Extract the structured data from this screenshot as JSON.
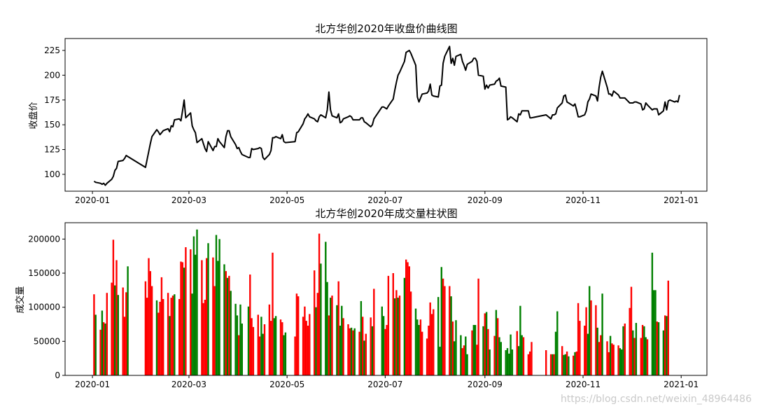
{
  "watermark": "https://blog.csdn.net/weixin_48964486",
  "chart_data": [
    {
      "type": "line",
      "title": "北方华创2020年收盘价曲线图",
      "ylabel": "收盘价",
      "xlabel": "",
      "x_ticks": [
        "2020-01",
        "2020-03",
        "2020-05",
        "2020-07",
        "2020-09",
        "2020-11",
        "2021-01"
      ],
      "y_ticks": [
        100,
        125,
        150,
        175,
        200,
        225
      ],
      "ylim": [
        83,
        237
      ],
      "xlim": [
        "2019-12-15",
        "2021-01-17"
      ],
      "line_color": "#000000",
      "series": [
        {
          "x": [
            "2020-01-02",
            "2020-01-03",
            "2020-01-06",
            "2020-01-07",
            "2020-01-08",
            "2020-01-09",
            "2020-01-10",
            "2020-01-13",
            "2020-01-14",
            "2020-01-15",
            "2020-01-16",
            "2020-01-17",
            "2020-01-20",
            "2020-01-21",
            "2020-01-22",
            "2020-01-23",
            "2020-02-03",
            "2020-02-04",
            "2020-02-05",
            "2020-02-06",
            "2020-02-07",
            "2020-02-10",
            "2020-02-11",
            "2020-02-12",
            "2020-02-13",
            "2020-02-14",
            "2020-02-17",
            "2020-02-18",
            "2020-02-19",
            "2020-02-20",
            "2020-02-21",
            "2020-02-24",
            "2020-02-25",
            "2020-02-26",
            "2020-02-27",
            "2020-02-28",
            "2020-03-02",
            "2020-03-03",
            "2020-03-04",
            "2020-03-05",
            "2020-03-06",
            "2020-03-09",
            "2020-03-10",
            "2020-03-11",
            "2020-03-12",
            "2020-03-13",
            "2020-03-16",
            "2020-03-17",
            "2020-03-18",
            "2020-03-19",
            "2020-03-20",
            "2020-03-23",
            "2020-03-24",
            "2020-03-25",
            "2020-03-26",
            "2020-03-27",
            "2020-03-30",
            "2020-03-31",
            "2020-04-01",
            "2020-04-02",
            "2020-04-03",
            "2020-04-07",
            "2020-04-08",
            "2020-04-09",
            "2020-04-10",
            "2020-04-13",
            "2020-04-14",
            "2020-04-15",
            "2020-04-16",
            "2020-04-17",
            "2020-04-20",
            "2020-04-21",
            "2020-04-22",
            "2020-04-23",
            "2020-04-24",
            "2020-04-27",
            "2020-04-28",
            "2020-04-29",
            "2020-04-30",
            "2020-05-06",
            "2020-05-07",
            "2020-05-08",
            "2020-05-11",
            "2020-05-12",
            "2020-05-13",
            "2020-05-14",
            "2020-05-15",
            "2020-05-18",
            "2020-05-19",
            "2020-05-20",
            "2020-05-21",
            "2020-05-22",
            "2020-05-25",
            "2020-05-26",
            "2020-05-27",
            "2020-05-28",
            "2020-05-29",
            "2020-06-01",
            "2020-06-02",
            "2020-06-03",
            "2020-06-04",
            "2020-06-05",
            "2020-06-08",
            "2020-06-09",
            "2020-06-10",
            "2020-06-11",
            "2020-06-12",
            "2020-06-15",
            "2020-06-16",
            "2020-06-17",
            "2020-06-18",
            "2020-06-19",
            "2020-06-22",
            "2020-06-23",
            "2020-06-24",
            "2020-06-29",
            "2020-06-30",
            "2020-07-01",
            "2020-07-02",
            "2020-07-03",
            "2020-07-06",
            "2020-07-07",
            "2020-07-08",
            "2020-07-09",
            "2020-07-10",
            "2020-07-13",
            "2020-07-14",
            "2020-07-15",
            "2020-07-16",
            "2020-07-17",
            "2020-07-20",
            "2020-07-21",
            "2020-07-22",
            "2020-07-23",
            "2020-07-24",
            "2020-07-27",
            "2020-07-28",
            "2020-07-29",
            "2020-07-30",
            "2020-07-31",
            "2020-08-03",
            "2020-08-04",
            "2020-08-05",
            "2020-08-06",
            "2020-08-07",
            "2020-08-10",
            "2020-08-11",
            "2020-08-12",
            "2020-08-13",
            "2020-08-14",
            "2020-08-17",
            "2020-08-18",
            "2020-08-19",
            "2020-08-20",
            "2020-08-21",
            "2020-08-24",
            "2020-08-25",
            "2020-08-26",
            "2020-08-27",
            "2020-08-28",
            "2020-08-31",
            "2020-09-01",
            "2020-09-02",
            "2020-09-03",
            "2020-09-04",
            "2020-09-07",
            "2020-09-08",
            "2020-09-09",
            "2020-09-10",
            "2020-09-11",
            "2020-09-14",
            "2020-09-15",
            "2020-09-16",
            "2020-09-17",
            "2020-09-18",
            "2020-09-21",
            "2020-09-22",
            "2020-09-23",
            "2020-09-24",
            "2020-09-25",
            "2020-09-28",
            "2020-09-29",
            "2020-09-30",
            "2020-10-09",
            "2020-10-12",
            "2020-10-13",
            "2020-10-14",
            "2020-10-15",
            "2020-10-16",
            "2020-10-19",
            "2020-10-20",
            "2020-10-21",
            "2020-10-22",
            "2020-10-23",
            "2020-10-26",
            "2020-10-27",
            "2020-10-28",
            "2020-10-29",
            "2020-10-30",
            "2020-11-02",
            "2020-11-03",
            "2020-11-04",
            "2020-11-05",
            "2020-11-06",
            "2020-11-09",
            "2020-11-10",
            "2020-11-11",
            "2020-11-12",
            "2020-11-13",
            "2020-11-16",
            "2020-11-17",
            "2020-11-18",
            "2020-11-19",
            "2020-11-20",
            "2020-11-23",
            "2020-11-24",
            "2020-11-25",
            "2020-11-26",
            "2020-11-27",
            "2020-11-30",
            "2020-12-01",
            "2020-12-02",
            "2020-12-03",
            "2020-12-04",
            "2020-12-07",
            "2020-12-08",
            "2020-12-09",
            "2020-12-10",
            "2020-12-11",
            "2020-12-14",
            "2020-12-15",
            "2020-12-16",
            "2020-12-17",
            "2020-12-18",
            "2020-12-21",
            "2020-12-22",
            "2020-12-23",
            "2020-12-24",
            "2020-12-25",
            "2020-12-28",
            "2020-12-29",
            "2020-12-30",
            "2020-12-31"
          ],
          "y": [
            93,
            92,
            91,
            90,
            91,
            89,
            91,
            95,
            98,
            104,
            106,
            113,
            114,
            116,
            119,
            118,
            107,
            115,
            123,
            131,
            138,
            145,
            143,
            140,
            142,
            144,
            146,
            143,
            149,
            148,
            155,
            156,
            154,
            164,
            175,
            157,
            162,
            149,
            145,
            142,
            132,
            136,
            131,
            126,
            123,
            133,
            124,
            128,
            128,
            136,
            133,
            127,
            138,
            144,
            144,
            138,
            130,
            126,
            127,
            123,
            120,
            117,
            117,
            126,
            125,
            126,
            127,
            126,
            117,
            115,
            120,
            124,
            137,
            137,
            138,
            136,
            140,
            133,
            132,
            133,
            142,
            143,
            151,
            156,
            158,
            161,
            158,
            156,
            154,
            153,
            158,
            160,
            157,
            165,
            183,
            165,
            159,
            157,
            161,
            152,
            153,
            156,
            158,
            159,
            158,
            155,
            155,
            155,
            157,
            157,
            153,
            152,
            148,
            150,
            156,
            168,
            168,
            167,
            166,
            169,
            176,
            185,
            193,
            200,
            203,
            214,
            223,
            224,
            225,
            222,
            210,
            178,
            173,
            177,
            181,
            182,
            184,
            191,
            180,
            179,
            178,
            189,
            190,
            212,
            219,
            229,
            212,
            217,
            210,
            219,
            221,
            214,
            210,
            205,
            211,
            214,
            217,
            217,
            214,
            200,
            199,
            186,
            190,
            187,
            190,
            191,
            194,
            195,
            197,
            189,
            188,
            155,
            156,
            158,
            157,
            153,
            161,
            160,
            164,
            164,
            164,
            157,
            157,
            160,
            156,
            160,
            160,
            161,
            167,
            172,
            179,
            180,
            173,
            172,
            169,
            171,
            165,
            158,
            158,
            160,
            164,
            173,
            176,
            181,
            179,
            174,
            188,
            198,
            204,
            188,
            181,
            181,
            179,
            184,
            180,
            177,
            177,
            177,
            177,
            172,
            172,
            172,
            173,
            173,
            171,
            165,
            166,
            172,
            170,
            165,
            166,
            166,
            166,
            160,
            164,
            173,
            165,
            174,
            175,
            173,
            174,
            173,
            180
          ]
        }
      ]
    },
    {
      "type": "bar",
      "title": "北方华创2020年成交量柱状图",
      "ylabel": "成交量",
      "xlabel": "",
      "x_ticks": [
        "2020-01",
        "2020-03",
        "2020-05",
        "2020-07",
        "2020-09",
        "2020-11",
        "2021-01"
      ],
      "y_ticks": [
        0,
        50000,
        100000,
        150000,
        200000
      ],
      "ylim": [
        0,
        224000
      ],
      "xlim": [
        "2019-12-15",
        "2021-01-17"
      ],
      "up_color": "#ff0000",
      "down_color": "#008000",
      "note_colors": "red = price up vs previous day, green = price down",
      "values": [
        119000,
        89000,
        67000,
        95000,
        78000,
        76000,
        121000,
        136000,
        199000,
        132000,
        169000,
        118000,
        129000,
        86000,
        122000,
        160000,
        138000,
        114000,
        172000,
        153000,
        131000,
        110000,
        92000,
        108000,
        144000,
        112000,
        121000,
        87000,
        114000,
        117000,
        119000,
        112000,
        167000,
        166000,
        158000,
        188000,
        185000,
        120000,
        204000,
        177000,
        214000,
        169000,
        106000,
        111000,
        172000,
        194000,
        173000,
        131000,
        206000,
        168000,
        200000,
        163000,
        153000,
        143000,
        146000,
        124000,
        105000,
        88000,
        59000,
        104000,
        76000,
        101000,
        148000,
        84000,
        71000,
        89000,
        57000,
        86000,
        61000,
        75000,
        104000,
        80000,
        180000,
        84000,
        87000,
        82000,
        78000,
        59000,
        63000,
        57000,
        120000,
        116000,
        86000,
        101000,
        80000,
        73000,
        90000,
        154000,
        100000,
        121000,
        208000,
        164000,
        196000,
        137000,
        88000,
        114000,
        117000,
        103000,
        138000,
        73000,
        102000,
        84000,
        75000,
        69000,
        70000,
        66000,
        69000,
        64000,
        109000,
        86000,
        51000,
        61000,
        85000,
        72000,
        127000,
        101000,
        87000,
        68000,
        74000,
        146000,
        150000,
        113000,
        125000,
        114000,
        117000,
        143000,
        170000,
        166000,
        160000,
        123000,
        98000,
        82000,
        74000,
        82000,
        64000,
        54000,
        73000,
        107000,
        90000,
        97000,
        115000,
        42000,
        159000,
        142000,
        131000,
        131000,
        116000,
        79000,
        50000,
        81000,
        59000,
        40000,
        44000,
        57000,
        31000,
        66000,
        74000,
        74000,
        45000,
        142000,
        72000,
        91000,
        93000,
        68000,
        38000,
        58000,
        96000,
        84000,
        56000,
        49000,
        37000,
        40000,
        32000,
        60000,
        38000,
        65000,
        43000,
        102000,
        59000,
        56000,
        31000,
        35000,
        49000,
        37000,
        31000,
        31000,
        31000,
        64000,
        94000,
        43000,
        30000,
        31000,
        35000,
        28000,
        29000,
        34000,
        35000,
        106000,
        80000,
        73000,
        100000,
        61000,
        131000,
        110000,
        103000,
        70000,
        49000,
        59000,
        120000,
        50000,
        34000,
        58000,
        47000,
        45000,
        44000,
        40000,
        38000,
        72000,
        76000,
        99000,
        130000,
        66000,
        55000,
        77000,
        55000,
        74000,
        72000,
        56000,
        53000,
        180000,
        125000,
        125000,
        79000,
        78000,
        66000,
        88000,
        87000,
        139000
      ],
      "colors": [
        "r",
        "g",
        "r",
        "g",
        "r",
        "g",
        "r",
        "r",
        "r",
        "g",
        "r",
        "g",
        "r",
        "r",
        "r",
        "g",
        "r",
        "r",
        "r",
        "r",
        "r",
        "g",
        "r",
        "r",
        "r",
        "r",
        "r",
        "g",
        "r",
        "r",
        "g",
        "r",
        "r",
        "r",
        "g",
        "r",
        "r",
        "g",
        "g",
        "g",
        "g",
        "r",
        "r",
        "r",
        "r",
        "g",
        "r",
        "r",
        "g",
        "g",
        "g",
        "g",
        "r",
        "g",
        "r",
        "g",
        "g",
        "g",
        "r",
        "g",
        "g",
        "g",
        "r",
        "r",
        "r",
        "r",
        "r",
        "g",
        "g",
        "r",
        "r",
        "r",
        "r",
        "g",
        "g",
        "r",
        "r",
        "g",
        "g",
        "r",
        "r",
        "r",
        "r",
        "r",
        "r",
        "r",
        "r",
        "r",
        "g",
        "r",
        "r",
        "g",
        "g",
        "g",
        "r",
        "g",
        "r",
        "g",
        "r",
        "g",
        "g",
        "r",
        "r",
        "r",
        "g",
        "r",
        "g",
        "r",
        "g",
        "r",
        "g",
        "r",
        "r",
        "g",
        "r",
        "g",
        "g",
        "r",
        "r",
        "r",
        "r",
        "g",
        "r",
        "g",
        "r",
        "g",
        "r",
        "r",
        "r",
        "r",
        "g",
        "g",
        "g",
        "r",
        "r",
        "r",
        "r",
        "r",
        "r",
        "r",
        "g",
        "g",
        "g",
        "r",
        "r",
        "r",
        "g",
        "r",
        "g",
        "g",
        "g",
        "r",
        "r",
        "g",
        "g",
        "r",
        "g",
        "g",
        "r",
        "r",
        "g",
        "r",
        "g",
        "r",
        "g",
        "r",
        "g",
        "r",
        "g",
        "g",
        "g",
        "g",
        "g",
        "g",
        "g",
        "r",
        "g",
        "g",
        "g",
        "r",
        "r",
        "r",
        "r",
        "r",
        "r",
        "g",
        "r",
        "g",
        "g",
        "r",
        "g",
        "g",
        "r",
        "g",
        "r",
        "g",
        "r",
        "r",
        "r",
        "r",
        "r",
        "g",
        "g",
        "r",
        "r",
        "g",
        "r",
        "r",
        "g",
        "r",
        "r",
        "g",
        "r",
        "r",
        "r",
        "g",
        "g",
        "g",
        "r",
        "r",
        "r",
        "g",
        "r",
        "g",
        "r",
        "r",
        "g",
        "g",
        "r",
        "g",
        "g",
        "g",
        "r",
        "g",
        "g",
        "r",
        "g",
        "r",
        "g",
        "g",
        "r",
        "g",
        "g",
        "r",
        "g",
        "r",
        "r",
        "r",
        "r"
      ]
    }
  ]
}
